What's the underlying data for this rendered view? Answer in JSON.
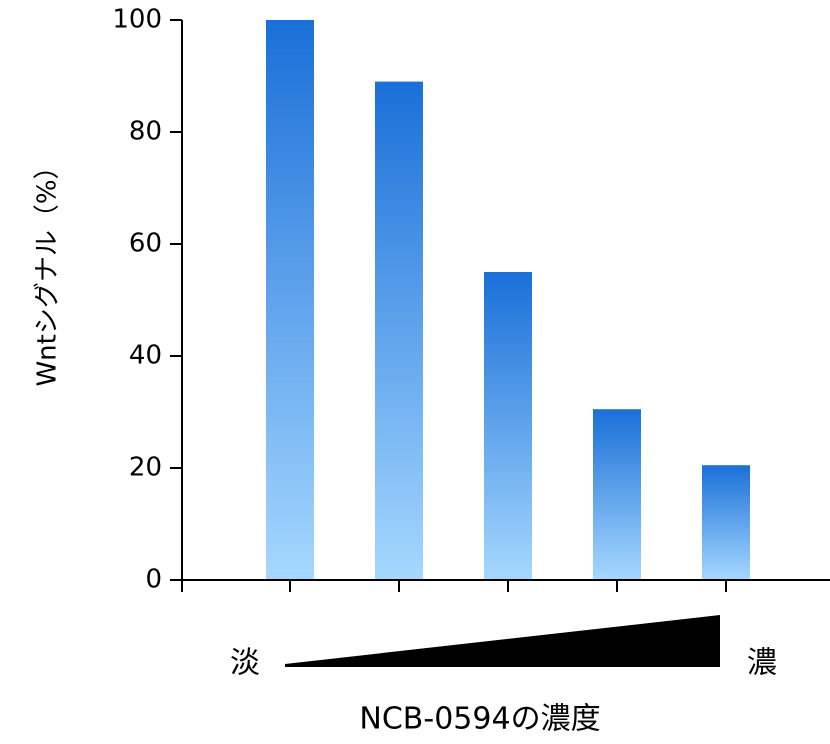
{
  "chart_data": {
    "type": "bar",
    "categories": [
      "",
      "",
      "",
      "",
      ""
    ],
    "values": [
      100,
      89,
      55,
      30.5,
      20.5
    ],
    "ylabel": "Wntシグナル（%）",
    "xlabel": "NCB-0594の濃度",
    "ylim": [
      0,
      100
    ],
    "yticks": [
      0,
      20,
      40,
      60,
      80,
      100
    ],
    "grid": false,
    "legend": "none",
    "bar_color_top": "#1a6fd8",
    "bar_color_bottom": "#a6d8ff",
    "gradient_low_label": "淡",
    "gradient_high_label": "濃"
  }
}
